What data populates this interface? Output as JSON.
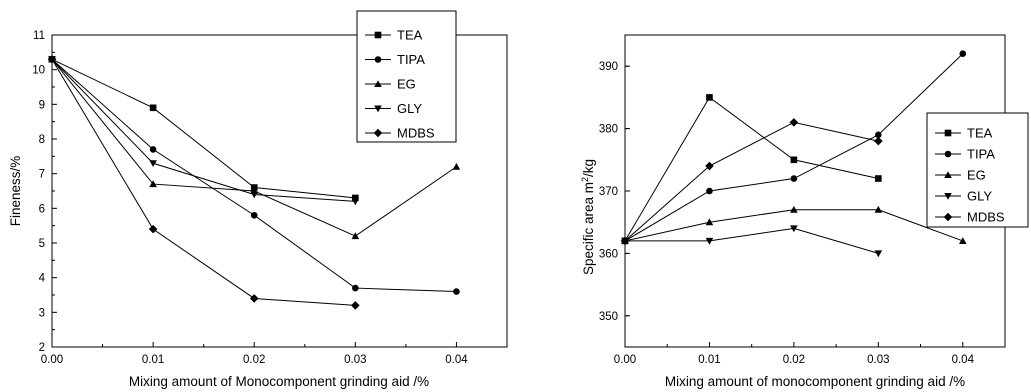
{
  "chart_data": [
    {
      "type": "line",
      "xlabel": "Mixing amount of Monocomponent grinding aid /%",
      "ylabel": "Fineness/%",
      "xlim": [
        0.0,
        0.045
      ],
      "ylim": [
        2,
        11
      ],
      "x_ticks": [
        "0.00",
        "0.01",
        "0.02",
        "0.03",
        "0.04"
      ],
      "y_ticks": [
        "2",
        "3",
        "4",
        "5",
        "6",
        "7",
        "8",
        "9",
        "10",
        "11"
      ],
      "legend_position": "top-right",
      "series": [
        {
          "name": "TEA",
          "marker": "square",
          "x": [
            0.0,
            0.01,
            0.02,
            0.03
          ],
          "y": [
            10.3,
            8.9,
            6.6,
            6.3
          ]
        },
        {
          "name": "TIPA",
          "marker": "circle",
          "x": [
            0.0,
            0.01,
            0.02,
            0.03,
            0.04
          ],
          "y": [
            10.3,
            7.7,
            5.8,
            3.7,
            3.6
          ]
        },
        {
          "name": "EG",
          "marker": "triangle-up",
          "x": [
            0.0,
            0.01,
            0.02,
            0.03,
            0.04
          ],
          "y": [
            10.3,
            6.7,
            6.5,
            5.2,
            7.2
          ]
        },
        {
          "name": "GLY",
          "marker": "triangle-down",
          "x": [
            0.0,
            0.01,
            0.02,
            0.03
          ],
          "y": [
            10.3,
            7.3,
            6.4,
            6.2
          ]
        },
        {
          "name": "MDBS",
          "marker": "diamond",
          "x": [
            0.0,
            0.01,
            0.02,
            0.03
          ],
          "y": [
            10.3,
            5.4,
            3.4,
            3.2
          ]
        }
      ]
    },
    {
      "type": "line",
      "xlabel": "Mixing amount of monocomponent grinding aid /%",
      "ylabel_main": "Specific area m",
      "ylabel_sup": "2",
      "ylabel_tail": "/kg",
      "xlim": [
        0.0,
        0.045
      ],
      "ylim": [
        345,
        395
      ],
      "x_ticks": [
        "0.00",
        "0.01",
        "0.02",
        "0.03",
        "0.04"
      ],
      "y_ticks": [
        "350",
        "360",
        "370",
        "380",
        "390"
      ],
      "legend_position": "right",
      "series": [
        {
          "name": "TEA",
          "marker": "square",
          "x": [
            0.0,
            0.01,
            0.02,
            0.03
          ],
          "y": [
            362,
            385,
            375,
            372
          ]
        },
        {
          "name": "TIPA",
          "marker": "circle",
          "x": [
            0.0,
            0.01,
            0.02,
            0.03,
            0.04
          ],
          "y": [
            362,
            370,
            372,
            379,
            392
          ]
        },
        {
          "name": "EG",
          "marker": "triangle-up",
          "x": [
            0.0,
            0.01,
            0.02,
            0.03,
            0.04
          ],
          "y": [
            362,
            365,
            367,
            367,
            362
          ]
        },
        {
          "name": "GLY",
          "marker": "triangle-down",
          "x": [
            0.0,
            0.01,
            0.02,
            0.03
          ],
          "y": [
            362,
            362,
            364,
            360
          ]
        },
        {
          "name": "MDBS",
          "marker": "diamond",
          "x": [
            0.0,
            0.01,
            0.02,
            0.03
          ],
          "y": [
            362,
            374,
            381,
            378
          ]
        }
      ]
    }
  ]
}
